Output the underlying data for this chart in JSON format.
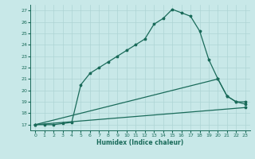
{
  "title": "",
  "xlabel": "Humidex (Indice chaleur)",
  "bg_color": "#c8e8e8",
  "grid_color": "#aed4d4",
  "line_color": "#1a6b5a",
  "xlim": [
    -0.5,
    23.5
  ],
  "ylim": [
    16.5,
    27.5
  ],
  "yticks": [
    17,
    18,
    19,
    20,
    21,
    22,
    23,
    24,
    25,
    26,
    27
  ],
  "xticks": [
    0,
    1,
    2,
    3,
    4,
    5,
    6,
    7,
    8,
    9,
    10,
    11,
    12,
    13,
    14,
    15,
    16,
    17,
    18,
    19,
    20,
    21,
    22,
    23
  ],
  "line1_x": [
    0,
    1,
    2,
    3,
    4,
    5,
    6,
    7,
    8,
    9,
    10,
    11,
    12,
    13,
    14,
    15,
    16,
    17,
    18,
    19,
    20,
    21,
    22,
    23
  ],
  "line1_y": [
    17,
    17,
    17,
    17.1,
    17.2,
    20.5,
    21.5,
    22.0,
    22.5,
    23.0,
    23.5,
    24.0,
    24.5,
    25.8,
    26.3,
    27.1,
    26.8,
    26.5,
    25.2,
    22.7,
    21.0,
    19.5,
    19.0,
    18.8
  ],
  "line2_x": [
    0,
    23
  ],
  "line2_y": [
    17,
    18.5
  ],
  "line3_x": [
    0,
    20,
    21,
    22,
    23
  ],
  "line3_y": [
    17,
    21.0,
    19.5,
    19.0,
    19.0
  ],
  "marker": "*",
  "markersize": 2.5,
  "linewidth": 0.9
}
